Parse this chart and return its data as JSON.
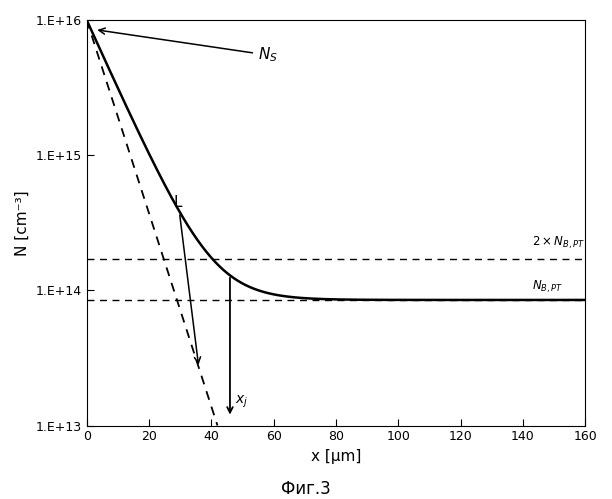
{
  "title": "",
  "xlabel": "x [μm]",
  "ylabel": "N [cm⁻³]",
  "caption": "Фиг.3",
  "xlim": [
    0,
    160
  ],
  "ylim_log": [
    10000000000000.0,
    1e+16
  ],
  "yticks": [
    10000000000000.0,
    100000000000000.0,
    1000000000000000.0,
    1e+16
  ],
  "ytick_labels": [
    "1.E+13",
    "1.E+14",
    "1.E+15",
    "1.E+16"
  ],
  "xticks": [
    0,
    20,
    40,
    60,
    80,
    100,
    120,
    140,
    160
  ],
  "N_s": 1e+16,
  "N_bpt": 85000000000000.0,
  "N_2bpt": 170000000000000.0,
  "xj": 46,
  "tau": 8.5,
  "L_end_x": 56.0,
  "L_end_log_y": 12.0,
  "line_color": "#000000",
  "dashed_color": "#000000",
  "background_color": "#ffffff",
  "figsize": [
    6.12,
    4.99
  ],
  "dpi": 100
}
